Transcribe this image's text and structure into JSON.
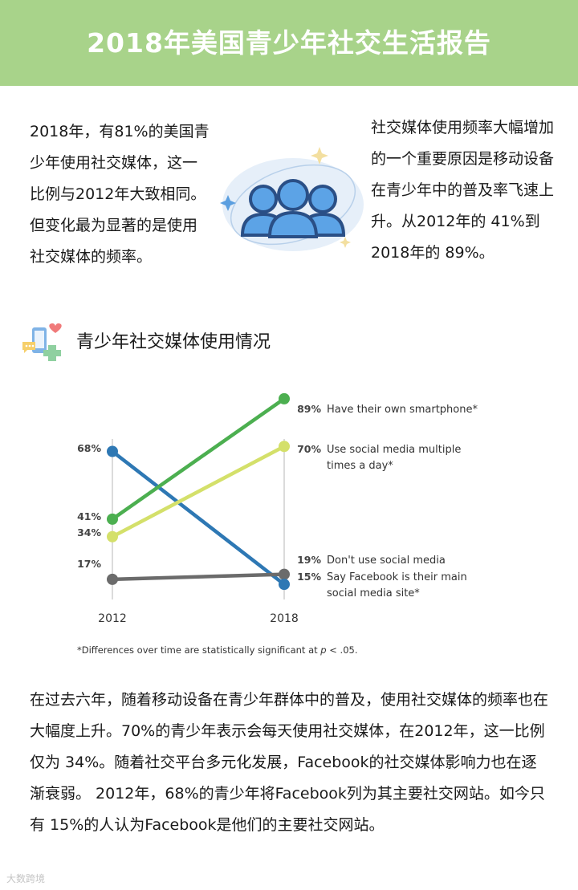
{
  "header": {
    "title": "2018年美国青少年社交生活报告",
    "bg_color": "#a8d38a"
  },
  "intro": {
    "left_text": "2018年，有81%的美国青少年使用社交媒体，这一比例与2012年大致相同。但变化最为显著的是使用社交媒体的频率。",
    "right_text": "社交媒体使用频率大幅增加的一个重要原因是移动设备在青少年中的普及率飞速上升。从2012年的 41%到2018年的 89%。",
    "illustration_icon": "people-group-icon"
  },
  "section": {
    "icon": "social-chat-icon",
    "title": "青少年社交媒体使用情况"
  },
  "chart_data": {
    "type": "line",
    "x": [
      "2012",
      "2018"
    ],
    "series": [
      {
        "name": "Have their own smartphone*",
        "values": [
          41,
          89
        ],
        "start_label": "41%",
        "end_label": "89%",
        "color": "#4caf50"
      },
      {
        "name": "Use social media multiple times a day*",
        "values": [
          34,
          70
        ],
        "start_label": "34%",
        "end_label": "70%",
        "color": "#d4e06a"
      },
      {
        "name": "Don't use social media",
        "values": [
          17,
          19
        ],
        "start_label": "17%",
        "end_label": "19%",
        "color": "#6b6b6b"
      },
      {
        "name": "Say Facebook is their main social media site*",
        "values": [
          68,
          15
        ],
        "start_label": "68%",
        "end_label": "15%",
        "color": "#2e78b4"
      }
    ],
    "footnote_pre": "*Differences over time are statistically significant at ",
    "footnote_p": "p",
    "footnote_post": " < .05."
  },
  "body_text": "在过去六年，随着移动设备在青少年群体中的普及，使用社交媒体的频率也在大幅度上升。70%的青少年表示会每天使用社交媒体，在2012年，这一比例仅为 34%。随着社交平台多元化发展，Facebook的社交媒体影响力也在逐渐衰弱。 2012年，68%的青少年将Facebook列为其主要社交网站。如今只有 15%的人认为Facebook是他们的主要社交网站。",
  "watermark": "大数跨境"
}
